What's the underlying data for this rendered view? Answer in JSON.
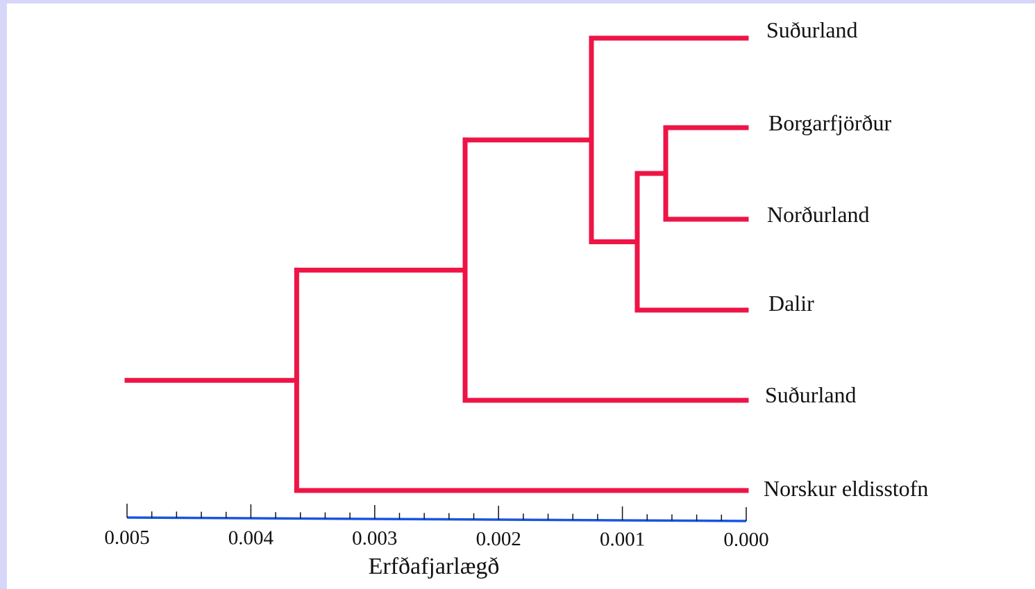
{
  "colors": {
    "frame": "#d6d6f8",
    "background": "#ffffff",
    "branch": "#ee1446",
    "axis_line": "#1a55e0"
  },
  "tree": {
    "leaves": [
      "Suðurland",
      "Borgarfjörður",
      "Norðurland",
      "Dalir",
      "Suðurland",
      "Norskur eldisstofn"
    ],
    "clusters": [
      {
        "members": [
          "Borgarfjörður",
          "Norðurland"
        ],
        "height": 0.00065
      },
      {
        "members": [
          "Borgarfjörður",
          "Norðurland",
          "Dalir"
        ],
        "height": 0.00088
      },
      {
        "members": [
          "Suðurland",
          "Borgarfjörður",
          "Norðurland",
          "Dalir"
        ],
        "height": 0.00125
      },
      {
        "members": [
          "Suðurland",
          "Borgarfjörður",
          "Norðurland",
          "Dalir",
          "Suðurland"
        ],
        "height": 0.00227
      },
      {
        "members": [
          "Suðurland",
          "Borgarfjörður",
          "Norðurland",
          "Dalir",
          "Suðurland",
          "Norskur eldisstofn"
        ],
        "height": 0.00363
      }
    ],
    "root_edge_start": 0.005
  },
  "axis": {
    "title": "Erfðafjarlægð",
    "range": [
      0.005,
      0.0
    ],
    "tick_labels": [
      "0.005",
      "0.004",
      "0.003",
      "0.002",
      "0.001",
      "0.000"
    ],
    "minor_ticks_per_interval": 5
  }
}
